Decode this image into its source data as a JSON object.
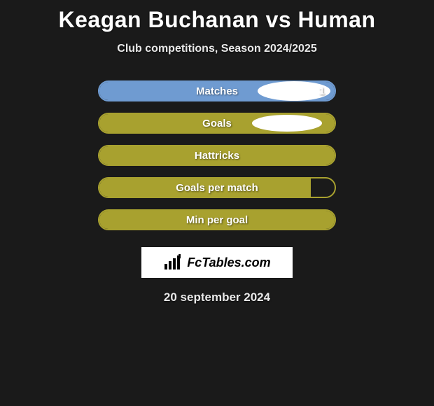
{
  "background_color": "#1a1a1a",
  "title": "Keagan Buchanan vs Human",
  "title_color": "#ffffff",
  "title_fontsize": 32,
  "subtitle": "Club competitions, Season 2024/2025",
  "subtitle_color": "#e8e8e8",
  "subtitle_fontsize": 16,
  "ellipse_color": "#ffffff",
  "stats": [
    {
      "label": "Matches",
      "pill_border_color": "#6f9bd1",
      "fill_color": "#6f9bd1",
      "fill_pct": 100,
      "value_right": "1",
      "show_left_ellipse": true,
      "show_right_ellipse": true,
      "ellipse_size": "big"
    },
    {
      "label": "Goals",
      "pill_border_color": "#a8a12f",
      "fill_color": "#a8a12f",
      "fill_pct": 100,
      "value_right": "",
      "show_left_ellipse": true,
      "show_right_ellipse": true,
      "ellipse_size": "small"
    },
    {
      "label": "Hattricks",
      "pill_border_color": "#a8a12f",
      "fill_color": "#a8a12f",
      "fill_pct": 100,
      "value_right": "",
      "show_left_ellipse": false,
      "show_right_ellipse": false,
      "ellipse_size": "none"
    },
    {
      "label": "Goals per match",
      "pill_border_color": "#a8a12f",
      "fill_color": "#a8a12f",
      "fill_pct": 90,
      "value_right": "",
      "show_left_ellipse": false,
      "show_right_ellipse": false,
      "ellipse_size": "none"
    },
    {
      "label": "Min per goal",
      "pill_border_color": "#a8a12f",
      "fill_color": "#a8a12f",
      "fill_pct": 100,
      "value_right": "",
      "show_left_ellipse": false,
      "show_right_ellipse": false,
      "ellipse_size": "none"
    }
  ],
  "fc_badge": {
    "brand_text": "FcTables.com",
    "background_color": "#ffffff",
    "text_color": "#000000",
    "icon_color": "#000000"
  },
  "date_text": "20 september 2024",
  "date_color": "#e8e8e8",
  "date_fontsize": 17
}
